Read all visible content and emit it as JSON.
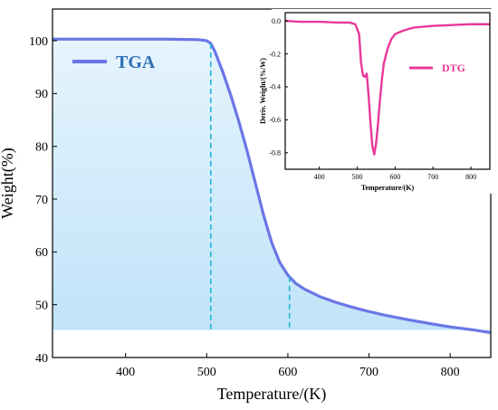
{
  "chart_data": [
    {
      "type": "area",
      "xlabel": "Temperature/(K)",
      "ylabel": "Weight(%)",
      "xlim": [
        310,
        850
      ],
      "ylim": [
        40,
        106
      ],
      "xticks": [
        400,
        500,
        600,
        700,
        800
      ],
      "yticks": [
        40,
        50,
        60,
        70,
        80,
        90,
        100
      ],
      "grid": false,
      "legend": "top-left",
      "series": [
        {
          "name": "TGA",
          "color": "#6b76e6",
          "fill": "#bfe3fa",
          "x": [
            310,
            350,
            400,
            450,
            490,
            500,
            505,
            510,
            520,
            530,
            540,
            550,
            560,
            570,
            580,
            590,
            600,
            610,
            620,
            640,
            660,
            680,
            700,
            720,
            750,
            780,
            800,
            830,
            850
          ],
          "y": [
            100.3,
            100.3,
            100.3,
            100.3,
            100.2,
            100.0,
            99.5,
            98.0,
            94.0,
            89.5,
            84.5,
            79.0,
            73.0,
            67.0,
            61.8,
            58.0,
            55.6,
            54.0,
            53.0,
            51.5,
            50.4,
            49.5,
            48.7,
            48.0,
            47.1,
            46.3,
            45.8,
            45.2,
            44.7
          ]
        }
      ],
      "markers": [
        {
          "x": 505,
          "y": 99.5,
          "color": "#1fb6d2"
        },
        {
          "x": 602,
          "y": 55.3,
          "color": "#1fb6d2"
        }
      ]
    },
    {
      "type": "line",
      "xlabel": "Temperature/(K)",
      "ylabel": "Deriv. Weight/(%/W)",
      "xlim": [
        310,
        850
      ],
      "ylim": [
        -0.9,
        0.05
      ],
      "xticks": [
        400,
        500,
        600,
        700,
        800
      ],
      "yticks": [
        0.0,
        -0.2,
        -0.4,
        -0.6,
        -0.8
      ],
      "ytick_labels": [
        "0.0",
        "-0.2",
        "-0.4",
        "-0.6",
        "-0.8"
      ],
      "grid": false,
      "legend": "top-right",
      "series": [
        {
          "name": "DTG",
          "color": "#e8389a",
          "x": [
            310,
            350,
            400,
            450,
            480,
            495,
            505,
            510,
            515,
            520,
            525,
            530,
            535,
            540,
            545,
            550,
            555,
            560,
            565,
            570,
            580,
            590,
            600,
            620,
            650,
            700,
            750,
            800,
            850
          ],
          "y": [
            0.0,
            -0.005,
            -0.005,
            -0.01,
            -0.01,
            -0.02,
            -0.08,
            -0.25,
            -0.33,
            -0.34,
            -0.32,
            -0.45,
            -0.62,
            -0.76,
            -0.81,
            -0.74,
            -0.62,
            -0.48,
            -0.36,
            -0.26,
            -0.17,
            -0.11,
            -0.08,
            -0.06,
            -0.04,
            -0.03,
            -0.025,
            -0.02,
            -0.02
          ]
        }
      ]
    }
  ]
}
